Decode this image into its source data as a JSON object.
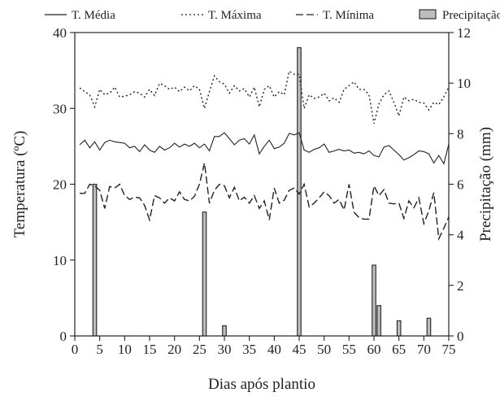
{
  "chart_data": {
    "type": "line",
    "title": "",
    "xlabel": "Dias após plantio",
    "ylabel_left": "Temperatura (ºC)",
    "ylabel_right": "Precipitação (mm)",
    "xlim": [
      0,
      75
    ],
    "ylim_left": [
      0,
      40
    ],
    "ylim_right": [
      0,
      12
    ],
    "xticks": [
      0,
      5,
      10,
      15,
      20,
      25,
      30,
      35,
      40,
      45,
      50,
      55,
      60,
      65,
      70,
      75
    ],
    "yticks_left": [
      0,
      10,
      20,
      30,
      40
    ],
    "yticks_right": [
      0,
      2,
      4,
      6,
      8,
      10,
      12
    ],
    "grid": false,
    "legend_position": "top",
    "colors": {
      "line": "#222222",
      "bar_fill": "#bdbdbd",
      "bar_stroke": "#222222"
    },
    "series": [
      {
        "name": "T. Média",
        "style": "solid",
        "axis": "left",
        "x": [
          1,
          2,
          3,
          4,
          5,
          6,
          7,
          8,
          9,
          10,
          11,
          12,
          13,
          14,
          15,
          16,
          17,
          18,
          19,
          20,
          21,
          22,
          23,
          24,
          25,
          26,
          27,
          28,
          29,
          30,
          31,
          32,
          33,
          34,
          35,
          36,
          37,
          38,
          39,
          40,
          41,
          42,
          43,
          44,
          45,
          46,
          47,
          48,
          49,
          50,
          51,
          52,
          53,
          54,
          55,
          56,
          57,
          58,
          59,
          60,
          61,
          62,
          63,
          64,
          65,
          66,
          67,
          68,
          69,
          70,
          71,
          72,
          73,
          74,
          75
        ],
        "values": [
          25.2,
          25.8,
          24.8,
          25.6,
          24.5,
          25.5,
          25.8,
          25.6,
          25.5,
          25.4,
          24.8,
          25.0,
          24.3,
          25.2,
          24.5,
          24.2,
          25.0,
          24.5,
          24.8,
          25.4,
          24.9,
          25.3,
          25.0,
          25.4,
          24.8,
          25.3,
          24.4,
          26.3,
          26.3,
          26.8,
          26.0,
          25.2,
          25.8,
          26.0,
          25.3,
          26.5,
          24.0,
          25.0,
          25.8,
          24.7,
          24.9,
          25.4,
          26.7,
          26.5,
          26.8,
          24.5,
          24.2,
          24.6,
          24.8,
          25.3,
          24.2,
          24.4,
          24.6,
          24.4,
          24.5,
          24.1,
          24.2,
          24.0,
          24.4,
          23.8,
          23.6,
          24.9,
          25.1,
          24.5,
          23.9,
          23.2,
          23.5,
          23.9,
          24.4,
          24.3,
          24.0,
          22.8,
          23.8,
          22.7,
          25.3
        ]
      },
      {
        "name": "T. Máxima",
        "style": "dotted",
        "axis": "left",
        "x": [
          1,
          2,
          3,
          4,
          5,
          6,
          7,
          8,
          9,
          10,
          11,
          12,
          13,
          14,
          15,
          16,
          17,
          18,
          19,
          20,
          21,
          22,
          23,
          24,
          25,
          26,
          27,
          28,
          29,
          30,
          31,
          32,
          33,
          34,
          35,
          36,
          37,
          38,
          39,
          40,
          41,
          42,
          43,
          44,
          45,
          46,
          47,
          48,
          49,
          50,
          51,
          52,
          53,
          54,
          55,
          56,
          57,
          58,
          59,
          60,
          61,
          62,
          63,
          64,
          65,
          66,
          67,
          68,
          69,
          70,
          71,
          72,
          73,
          74,
          75
        ],
        "values": [
          32.7,
          32.2,
          31.8,
          30.2,
          32.5,
          31.8,
          32.0,
          32.8,
          31.5,
          31.6,
          31.8,
          32.2,
          32.0,
          31.5,
          32.5,
          31.7,
          33.3,
          33.0,
          32.5,
          32.8,
          32.2,
          32.8,
          32.3,
          33.0,
          32.5,
          30.0,
          32.2,
          34.3,
          33.5,
          33.2,
          32.0,
          33.0,
          32.3,
          32.6,
          31.5,
          32.8,
          30.2,
          32.5,
          33.0,
          31.5,
          32.2,
          31.8,
          34.9,
          34.5,
          34.5,
          30.0,
          31.8,
          31.3,
          31.5,
          32.0,
          31.0,
          31.4,
          30.8,
          32.5,
          33.0,
          33.5,
          32.5,
          32.5,
          31.8,
          28.0,
          30.6,
          31.8,
          32.3,
          30.8,
          29.0,
          31.5,
          31.0,
          31.2,
          30.8,
          30.7,
          29.8,
          30.8,
          30.5,
          31.5,
          32.8
        ]
      },
      {
        "name": "T. Mínima",
        "style": "dashed",
        "axis": "left",
        "x": [
          1,
          2,
          3,
          4,
          5,
          6,
          7,
          8,
          9,
          10,
          11,
          12,
          13,
          14,
          15,
          16,
          17,
          18,
          19,
          20,
          21,
          22,
          23,
          24,
          25,
          26,
          27,
          28,
          29,
          30,
          31,
          32,
          33,
          34,
          35,
          36,
          37,
          38,
          39,
          40,
          41,
          42,
          43,
          44,
          45,
          46,
          47,
          48,
          49,
          50,
          51,
          52,
          53,
          54,
          55,
          56,
          57,
          58,
          59,
          60,
          61,
          62,
          63,
          64,
          65,
          66,
          67,
          68,
          69,
          70,
          71,
          72,
          73,
          74,
          75
        ],
        "values": [
          18.8,
          18.8,
          20.0,
          19.8,
          19.2,
          16.8,
          19.7,
          19.5,
          20.0,
          18.5,
          18.0,
          18.3,
          18.2,
          17.2,
          15.3,
          18.5,
          18.2,
          17.5,
          18.2,
          17.8,
          19.0,
          18.0,
          17.8,
          18.4,
          20.0,
          22.8,
          17.5,
          19.2,
          20.0,
          19.8,
          18.2,
          19.6,
          17.8,
          18.3,
          17.5,
          18.5,
          16.8,
          17.8,
          15.3,
          19.5,
          17.5,
          17.9,
          19.2,
          19.5,
          18.7,
          20.0,
          17.0,
          17.5,
          18.2,
          19.0,
          18.5,
          17.5,
          18.0,
          16.6,
          20.0,
          16.3,
          15.6,
          15.4,
          15.4,
          19.8,
          18.5,
          19.3,
          17.5,
          17.4,
          17.5,
          15.5,
          17.8,
          16.9,
          18.2,
          14.8,
          16.5,
          18.9,
          12.8,
          14.2,
          15.7
        ]
      },
      {
        "name": "Precipitação",
        "type": "bar",
        "axis": "right",
        "x": [
          4,
          26,
          30,
          45,
          60,
          61,
          65,
          71
        ],
        "values": [
          6.0,
          4.9,
          0.4,
          11.4,
          2.8,
          1.2,
          0.6,
          0.7
        ]
      }
    ]
  }
}
